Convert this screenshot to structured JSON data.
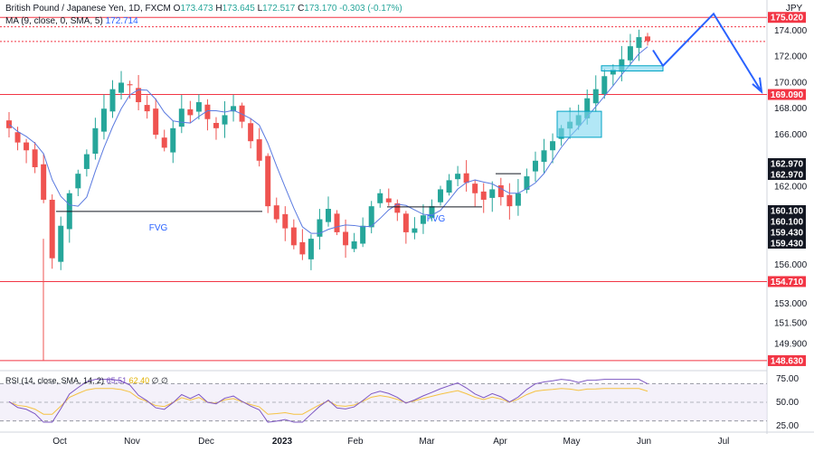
{
  "header": {
    "symbol": "British Pound / Japanese Yen, 1D, FXCM",
    "open_label": "O",
    "open": "173.473",
    "high_label": "H",
    "high": "173.645",
    "low_label": "L",
    "low": "172.517",
    "close_label": "C",
    "close": "173.170",
    "change": "-0.303 (-0.17%)",
    "ma_label": "MA (9, close, 0, SMA, 5)",
    "ma_value": "172.714",
    "rsi_label": "RSI (14, close, SMA, 14, 2)",
    "rsi_value": "65.51",
    "rsi_sma_value": "62.40",
    "rsi_extra": "∅ ∅"
  },
  "chart_data": {
    "type": "candlestick",
    "currency": "JPY",
    "y_ticks": [
      "174.000",
      "172.000",
      "170.000",
      "168.000",
      "166.000",
      "162.000",
      "156.000",
      "153.000",
      "151.500",
      "149.900"
    ],
    "x_ticks": [
      "Oct",
      "Nov",
      "Dec",
      "2023",
      "Feb",
      "Mar",
      "Apr",
      "May",
      "Jun",
      "Jul"
    ],
    "ylim": [
      148.0,
      175.8
    ],
    "price_labels": [
      {
        "value": "175.020",
        "color": "#f23645"
      },
      {
        "value": "169.090",
        "color": "#f23645"
      },
      {
        "value": "162.970",
        "color": "#131722"
      },
      {
        "value": "162.970",
        "color": "#131722"
      },
      {
        "value": "160.100",
        "color": "#131722"
      },
      {
        "value": "160.100",
        "color": "#131722"
      },
      {
        "value": "159.430",
        "color": "#131722"
      },
      {
        "value": "159.430",
        "color": "#131722"
      },
      {
        "value": "154.710",
        "color": "#f23645"
      },
      {
        "value": "148.630",
        "color": "#f23645"
      }
    ],
    "horizontal_levels": [
      175.02,
      169.09,
      154.71,
      148.63
    ],
    "annotations": [
      {
        "text": "FVG",
        "price": 159.6
      },
      {
        "text": "FVG",
        "price": 160.1
      }
    ],
    "close_path": [
      166.5,
      165.4,
      164.8,
      163.5,
      161.0,
      156.5,
      159.0,
      161.5,
      163.0,
      164.5,
      166.5,
      168.0,
      169.5,
      170.0,
      169.8,
      168.5,
      167.8,
      166.0,
      165.0,
      166.5,
      168.0,
      167.5,
      168.5,
      167.2,
      166.5,
      167.5,
      168.2,
      167.0,
      165.5,
      164.0,
      160.5,
      159.5,
      158.8,
      157.5,
      156.8,
      158.0,
      159.5,
      160.3,
      158.5,
      157.5,
      157.8,
      159.0,
      160.5,
      161.5,
      160.8,
      160.0,
      158.5,
      158.8,
      159.8,
      160.5,
      161.8,
      162.5,
      163.0,
      162.3,
      161.5,
      161.0,
      161.8,
      161.2,
      160.5,
      161.5,
      162.8,
      164.0,
      164.8,
      165.5,
      166.5,
      167.0,
      167.5,
      168.8,
      169.5,
      170.5,
      171.0,
      171.8,
      172.8,
      173.5,
      173.2
    ],
    "rsi": {
      "ylim": [
        20,
        80
      ],
      "ticks": [
        "75.00",
        "50.00",
        "25.00"
      ],
      "upper": 70,
      "lower": 30,
      "last": 65.51,
      "sma_last": 62.4
    }
  }
}
